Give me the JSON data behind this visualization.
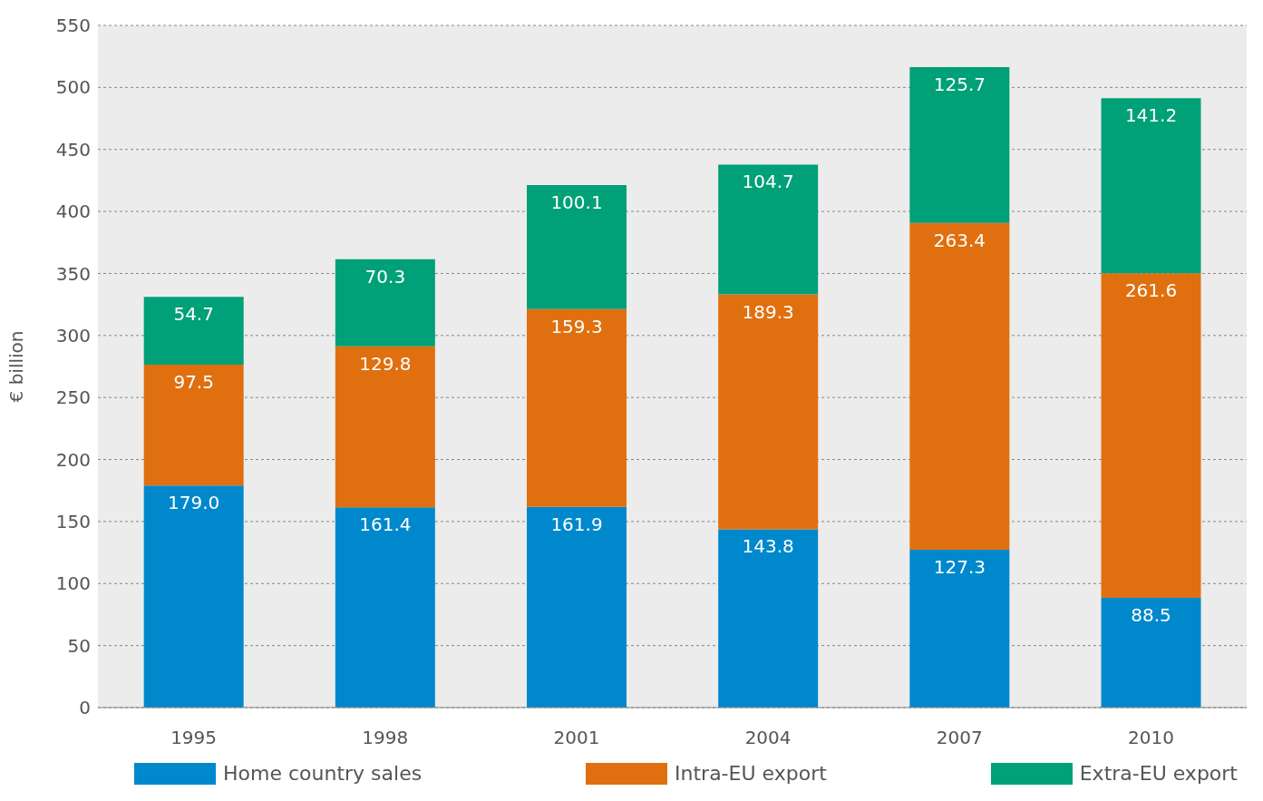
{
  "chart_data": {
    "type": "bar",
    "stacked": true,
    "ylabel": "€ billion",
    "categories": [
      "1995",
      "1998",
      "2001",
      "2004",
      "2007",
      "2010"
    ],
    "series": [
      {
        "name": "Home country sales",
        "color": "#0088cc",
        "values": [
          179.0,
          161.4,
          161.9,
          143.8,
          127.3,
          88.5
        ],
        "value_labels": [
          "179.0",
          "161.4",
          "161.9",
          "143.8",
          "127.3",
          "88.5"
        ]
      },
      {
        "name": "Intra-EU export",
        "color": "#e0700f",
        "values": [
          97.5,
          129.8,
          159.3,
          189.3,
          263.4,
          261.6
        ],
        "value_labels": [
          "97.5",
          "129.8",
          "159.3",
          "189.3",
          "263.4",
          "261.6"
        ]
      },
      {
        "name": "Extra-EU export",
        "color": "#00a078",
        "values": [
          54.7,
          70.3,
          100.1,
          104.7,
          125.7,
          141.2
        ],
        "value_labels": [
          "54.7",
          "70.3",
          "100.1",
          "104.7",
          "125.7",
          "141.2"
        ]
      }
    ],
    "ylim": [
      0,
      550
    ],
    "yticks": [
      0,
      50,
      100,
      150,
      200,
      250,
      300,
      350,
      400,
      450,
      500,
      550
    ],
    "grid": "y",
    "legend": "bottom"
  }
}
